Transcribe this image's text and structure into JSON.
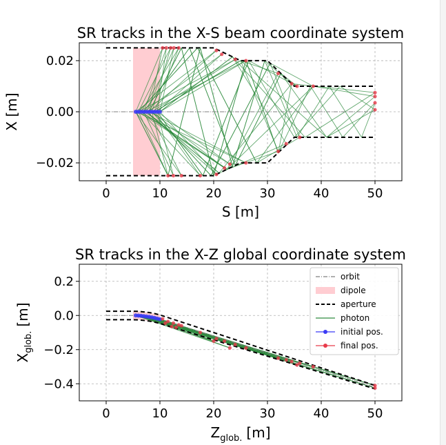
{
  "chart_data": [
    {
      "type": "line",
      "title": "SR tracks in the X-S beam coordinate system",
      "xlabel": "S [m]",
      "ylabel": "X [m]",
      "xlim": [
        -5,
        55
      ],
      "ylim": [
        -0.027,
        0.027
      ],
      "xticks": [
        0,
        10,
        20,
        30,
        40,
        50
      ],
      "yticks": [
        -0.02,
        0.0,
        0.02
      ],
      "xtick_labels": [
        "0",
        "10",
        "20",
        "30",
        "40",
        "50"
      ],
      "ytick_labels": [
        "−0.02",
        "0.00",
        "0.02"
      ],
      "grid": true,
      "dipole": {
        "s_start": 5,
        "s_end": 10,
        "color": "#ffcdd2"
      },
      "orbit": {
        "x": [
          0,
          50
        ],
        "y": [
          0,
          0
        ],
        "color": "#7f7f7f"
      },
      "aperture_upper": {
        "x": [
          0,
          20,
          22,
          25,
          30,
          35,
          50
        ],
        "y": [
          0.025,
          0.025,
          0.023,
          0.02,
          0.02,
          0.01,
          0.01
        ]
      },
      "aperture_lower": {
        "x": [
          0,
          20,
          22,
          25,
          30,
          35,
          50
        ],
        "y": [
          -0.025,
          -0.025,
          -0.023,
          -0.02,
          -0.02,
          -0.01,
          -0.01
        ]
      },
      "initial_positions": {
        "s": [
          5.5,
          6.0,
          6.5,
          7.0,
          7.5,
          8.0,
          8.5,
          9.0,
          9.5,
          10.0
        ],
        "x": [
          0,
          0,
          0,
          0,
          0,
          0,
          0,
          0,
          0,
          0
        ]
      },
      "final_positions": {
        "s": [
          10.5,
          11.2,
          12.0,
          12.6,
          13.5,
          20.5,
          21.5,
          24.0,
          26.0,
          32.0,
          34.5,
          35.5,
          38.5,
          50.0,
          50.0,
          50.0,
          50.0,
          36.0,
          33.5,
          32.0,
          26.0,
          23.0,
          22.0,
          20.5,
          17.5,
          14.0,
          12.5,
          11.5
        ],
        "x": [
          0.025,
          0.025,
          0.025,
          0.025,
          0.025,
          0.024,
          0.0225,
          0.0205,
          0.02,
          0.015,
          0.011,
          0.01,
          0.01,
          0.0075,
          0.006,
          0.0035,
          0.0008,
          -0.01,
          -0.0125,
          -0.0155,
          -0.02,
          -0.0205,
          -0.022,
          -0.0245,
          -0.025,
          -0.025,
          -0.025,
          -0.025
        ]
      },
      "colors": {
        "aperture": "#000000",
        "photon": "#2e8b3e",
        "initial": "#3b3bf5",
        "final": "#e83a4a"
      }
    },
    {
      "type": "line",
      "title": "SR tracks in the X-Z global coordinate system",
      "xlabel": "Z",
      "xlabel_sub": "glob.",
      "xlabel_unit": "[m]",
      "ylabel": "X",
      "ylabel_sub": "glob.",
      "ylabel_unit": "[m]",
      "xlim": [
        -5,
        55
      ],
      "ylim": [
        -0.5,
        0.3
      ],
      "xticks": [
        0,
        10,
        20,
        30,
        40,
        50
      ],
      "yticks": [
        -0.4,
        -0.2,
        0.0,
        0.2
      ],
      "xtick_labels": [
        "0",
        "10",
        "20",
        "30",
        "40",
        "50"
      ],
      "ytick_labels": [
        "−0.4",
        "−0.2",
        "0.0",
        "0.2"
      ],
      "grid": true,
      "legend": {
        "position": "top-right",
        "entries": [
          {
            "label": "orbit",
            "style": "dashdot",
            "color": "#7f7f7f"
          },
          {
            "label": "dipole",
            "style": "patch",
            "color": "#ffcdd2"
          },
          {
            "label": "aperture",
            "style": "dashed",
            "color": "#000000"
          },
          {
            "label": "photon",
            "style": "line",
            "color": "#2e8b3e"
          },
          {
            "label": "initial pos.",
            "style": "marker-line",
            "color": "#3b3bf5"
          },
          {
            "label": "final pos.",
            "style": "marker-line",
            "color": "#e83a4a"
          }
        ]
      },
      "orbit": {
        "x": [
          0,
          5,
          6,
          7,
          8,
          9,
          10,
          50
        ],
        "y": [
          0,
          0,
          -0.001,
          -0.004,
          -0.008,
          -0.014,
          -0.022,
          -0.42
        ]
      },
      "aperture_upper": {
        "x": [
          0,
          5,
          6,
          7,
          8,
          9,
          10,
          50
        ],
        "y": [
          0.025,
          0.025,
          0.024,
          0.021,
          0.017,
          0.011,
          0.003,
          -0.41
        ]
      },
      "aperture_lower": {
        "x": [
          0,
          5,
          6,
          7,
          8,
          9,
          10,
          50
        ],
        "y": [
          -0.025,
          -0.025,
          -0.026,
          -0.029,
          -0.033,
          -0.039,
          -0.047,
          -0.43
        ]
      },
      "initial_positions": {
        "z": [
          5.5,
          6.0,
          6.5,
          7.0,
          7.5,
          8.0,
          8.5,
          9.0,
          9.5,
          10.0
        ],
        "x": [
          0,
          -0.001,
          -0.002,
          -0.004,
          -0.006,
          -0.008,
          -0.011,
          -0.014,
          -0.018,
          -0.022
        ]
      },
      "final_positions": {
        "z": [
          10.5,
          11.5,
          12.5,
          13.5,
          14.0,
          17.5,
          20.5,
          22.0,
          24.0,
          26.0,
          32.0,
          34.5,
          36.0,
          38.5,
          50.0,
          50.0,
          11.0,
          12.2,
          13.0,
          20.0,
          23.0,
          33.5,
          35.5
        ],
        "x": [
          -0.02,
          -0.035,
          -0.045,
          -0.055,
          -0.06,
          -0.1,
          -0.135,
          -0.15,
          -0.17,
          -0.19,
          -0.25,
          -0.27,
          -0.28,
          -0.3,
          -0.41,
          -0.425,
          -0.045,
          -0.065,
          -0.07,
          -0.15,
          -0.19,
          -0.26,
          -0.29
        ]
      },
      "colors": {
        "aperture": "#000000",
        "photon": "#2e8b3e",
        "initial": "#3b3bf5",
        "final": "#e83a4a"
      }
    }
  ]
}
